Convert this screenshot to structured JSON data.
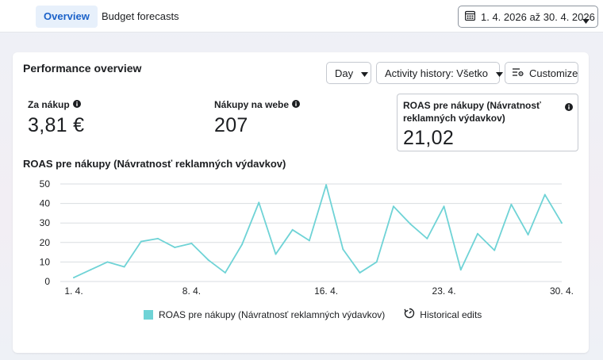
{
  "tabs": [
    {
      "label": "Overview",
      "active": true
    },
    {
      "label": "Budget forecasts",
      "active": false
    }
  ],
  "date_range": {
    "label": "1. 4. 2026 až 30. 4. 2026",
    "icon": "calendar-icon"
  },
  "card": {
    "title": "Performance overview",
    "controls": {
      "day_label": "Day",
      "activity_label": "Activity history: Všetko",
      "customize_label": "Customize"
    },
    "metrics": [
      {
        "label": "Za nákup",
        "value": "3,81 €"
      },
      {
        "label": "Nákupy na webe",
        "value": "207"
      },
      {
        "label": "ROAS pre nákupy (Návratnosť reklamných výdavkov)",
        "value": "21,02"
      }
    ]
  },
  "chart_data": {
    "type": "line",
    "title": "ROAS pre nákupy (Návratnosť reklamných výdavkov)",
    "ylim": [
      0,
      50
    ],
    "yticks": [
      0,
      10,
      20,
      30,
      40,
      50
    ],
    "x_tick_labels": [
      {
        "day": 1,
        "label": "1. 4."
      },
      {
        "day": 8,
        "label": "8. 4."
      },
      {
        "day": 16,
        "label": "16. 4."
      },
      {
        "day": 23,
        "label": "23. 4."
      },
      {
        "day": 30,
        "label": "30. 4."
      }
    ],
    "x": [
      1,
      2,
      3,
      4,
      5,
      6,
      7,
      8,
      9,
      10,
      11,
      12,
      13,
      14,
      15,
      16,
      17,
      18,
      19,
      20,
      21,
      22,
      23,
      24,
      25,
      26,
      27,
      28,
      29,
      30
    ],
    "series": [
      {
        "name": "ROAS pre nákupy (Návratnosť reklamných výdavkov)",
        "color": "#6fd3d6",
        "values": [
          2,
          6,
          10,
          7.5,
          20.5,
          22,
          17.5,
          19.5,
          11,
          4.5,
          19,
          40.5,
          14,
          26.5,
          21,
          49.5,
          16.5,
          4.5,
          10,
          38.5,
          29.5,
          22,
          38.5,
          6,
          24.5,
          16,
          39.5,
          24,
          44.5,
          30
        ]
      }
    ],
    "grid": true,
    "legend": {
      "position": "bottom",
      "items": [
        "ROAS pre nákupy (Návratnosť reklamných výdavkov)",
        "Historical edits"
      ]
    }
  }
}
